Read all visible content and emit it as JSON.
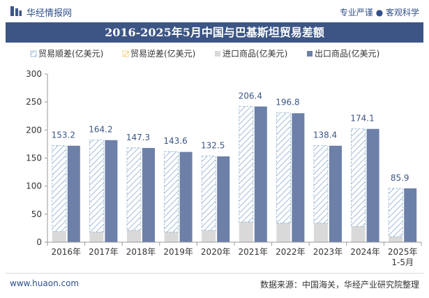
{
  "header": {
    "brand": "华经情报网",
    "tagline": "专业严谨 ● 客观科学"
  },
  "footer": {
    "source": "数据来源：中国海关，华经产业研究院整理",
    "website": "www.huaon.com"
  },
  "colors": {
    "title_bg": "#3c5584",
    "surplus_hatch": "#8fb0d0",
    "import_bar": "#d9d9d9",
    "export_bar": "#6c80a8",
    "deficit_hatch": "#f0cc6a"
  },
  "chart_data": {
    "type": "bar",
    "title": "2016-2025年5月中国与巴基斯坦贸易差额",
    "categories": [
      "2016年",
      "2017年",
      "2018年",
      "2019年",
      "2020年",
      "2021年",
      "2022年",
      "2023年",
      "2024年",
      "2025年\n1-5月"
    ],
    "series": [
      {
        "name": "贸易顺差(亿美元)",
        "values": [
          153.2,
          164.2,
          147.3,
          143.6,
          132.5,
          206.4,
          196.8,
          138.4,
          174.1,
          85.9
        ]
      },
      {
        "name": "贸易逆差(亿美元)",
        "values": [
          0,
          0,
          0,
          0,
          0,
          0,
          0,
          0,
          0,
          0
        ]
      },
      {
        "name": "进口商品(亿美元)",
        "values": [
          19,
          18,
          21,
          18,
          21,
          36,
          34,
          34,
          28,
          10
        ]
      },
      {
        "name": "出口商品(亿美元)",
        "values": [
          172,
          182,
          168,
          161,
          153,
          242,
          230,
          172,
          202,
          96
        ]
      }
    ],
    "ylim": [
      0,
      300
    ],
    "yticks": [
      0,
      50,
      100,
      150,
      200,
      250,
      300
    ],
    "data_labels": [
      "153.2",
      "164.2",
      "147.3",
      "143.6",
      "132.5",
      "206.4",
      "196.8",
      "138.4",
      "174.1",
      "85.9"
    ],
    "legend_position": "top",
    "grid": false
  }
}
